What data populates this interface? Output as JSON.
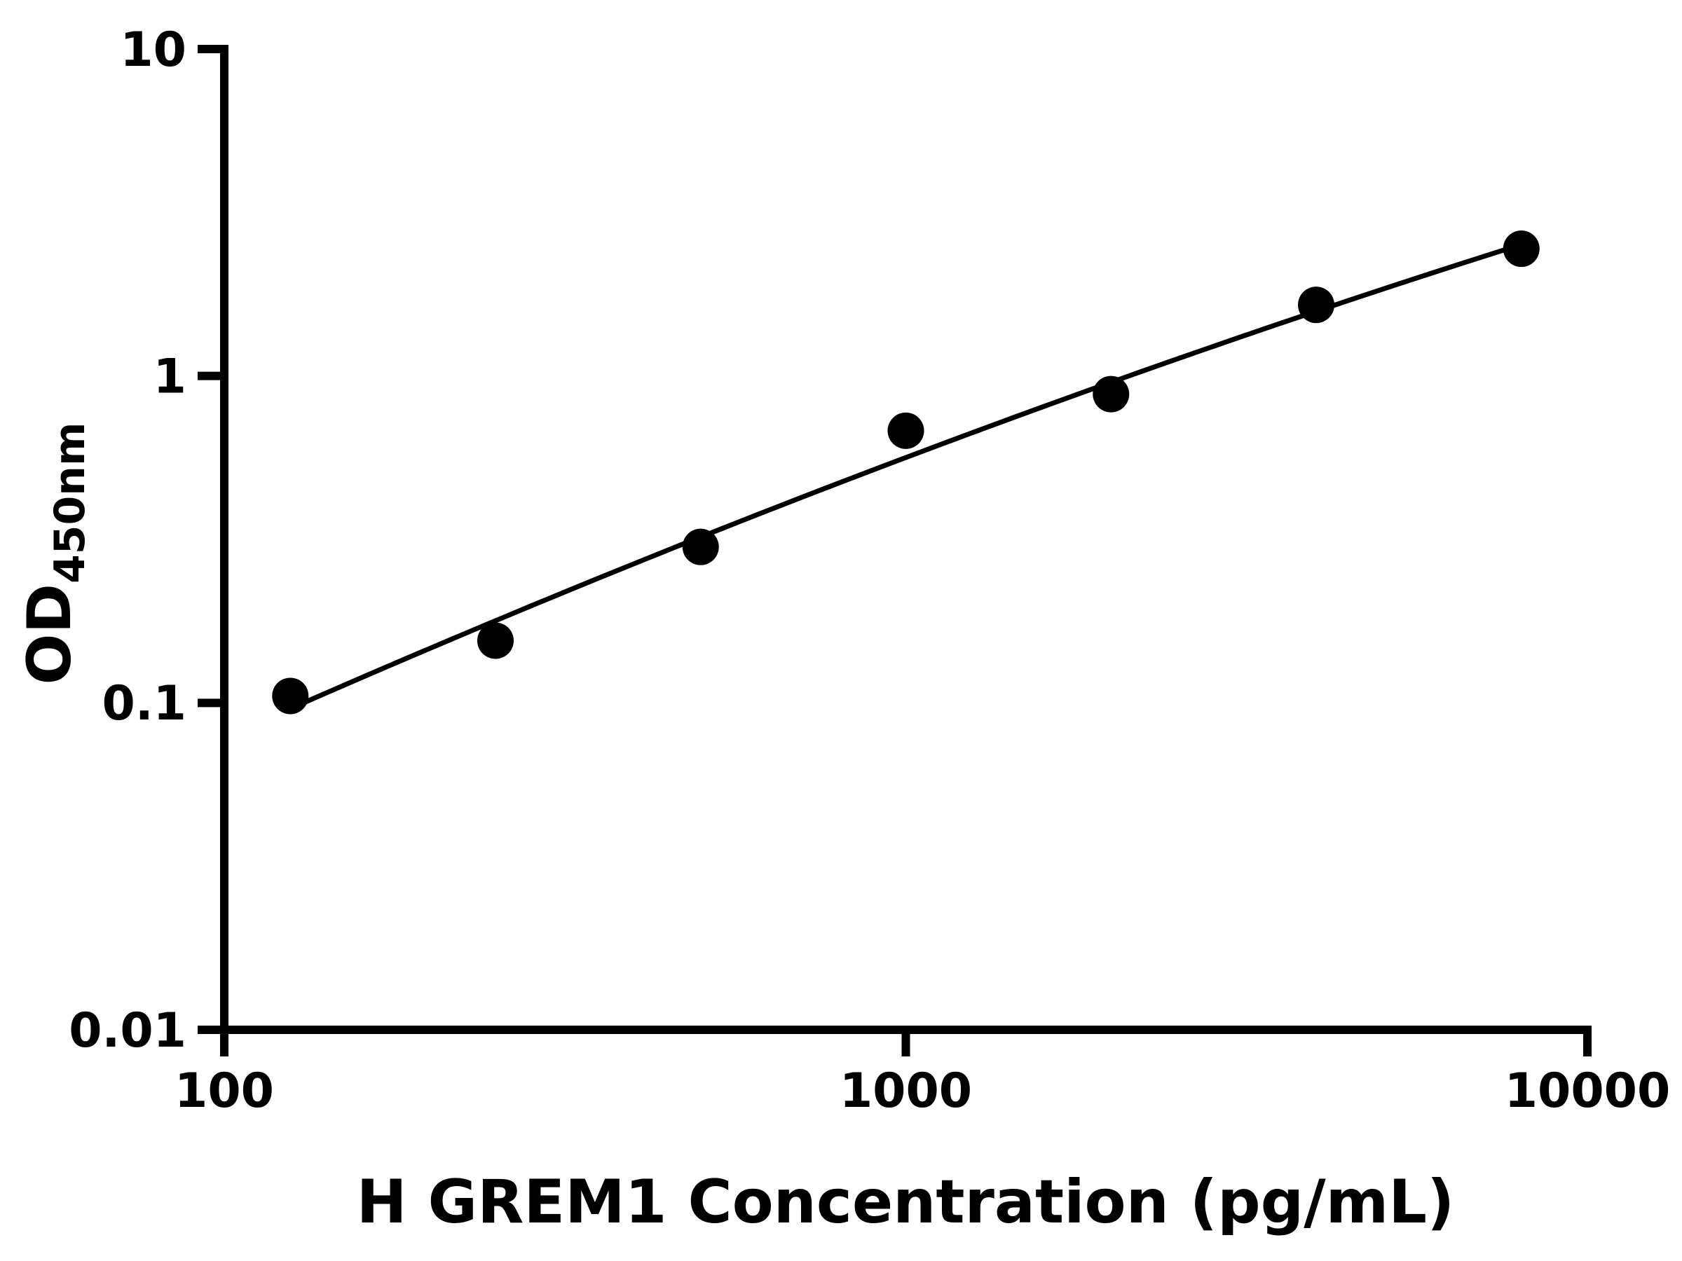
{
  "chart_data": {
    "type": "scatter",
    "title": "",
    "xlabel": "H GREM1 Concentration (pg/mL)",
    "ylabel": "OD",
    "ylabel_subscript": "450nm",
    "x_scale": "log",
    "y_scale": "log",
    "xlim": [
      100,
      10000
    ],
    "ylim": [
      0.01,
      10
    ],
    "grid": false,
    "legend": "none",
    "x_ticks": [
      {
        "value": 100,
        "label": "100"
      },
      {
        "value": 1000,
        "label": "1000"
      },
      {
        "value": 10000,
        "label": "10000"
      }
    ],
    "y_ticks": [
      {
        "value": 0.01,
        "label": "0.01"
      },
      {
        "value": 0.1,
        "label": "0.1"
      },
      {
        "value": 1,
        "label": "1"
      },
      {
        "value": 10,
        "label": "10"
      }
    ],
    "points": {
      "x": [
        125,
        250,
        500,
        1000,
        2000,
        4000,
        8000
      ],
      "y": [
        0.105,
        0.155,
        0.3,
        0.68,
        0.88,
        1.65,
        2.45
      ]
    },
    "fit": "quadratic-loglog",
    "marker": "filled-circle",
    "colors": {
      "marker": "#000000",
      "curve": "#000000",
      "axis": "#000000",
      "text": "#000000",
      "background": "#ffffff"
    }
  }
}
